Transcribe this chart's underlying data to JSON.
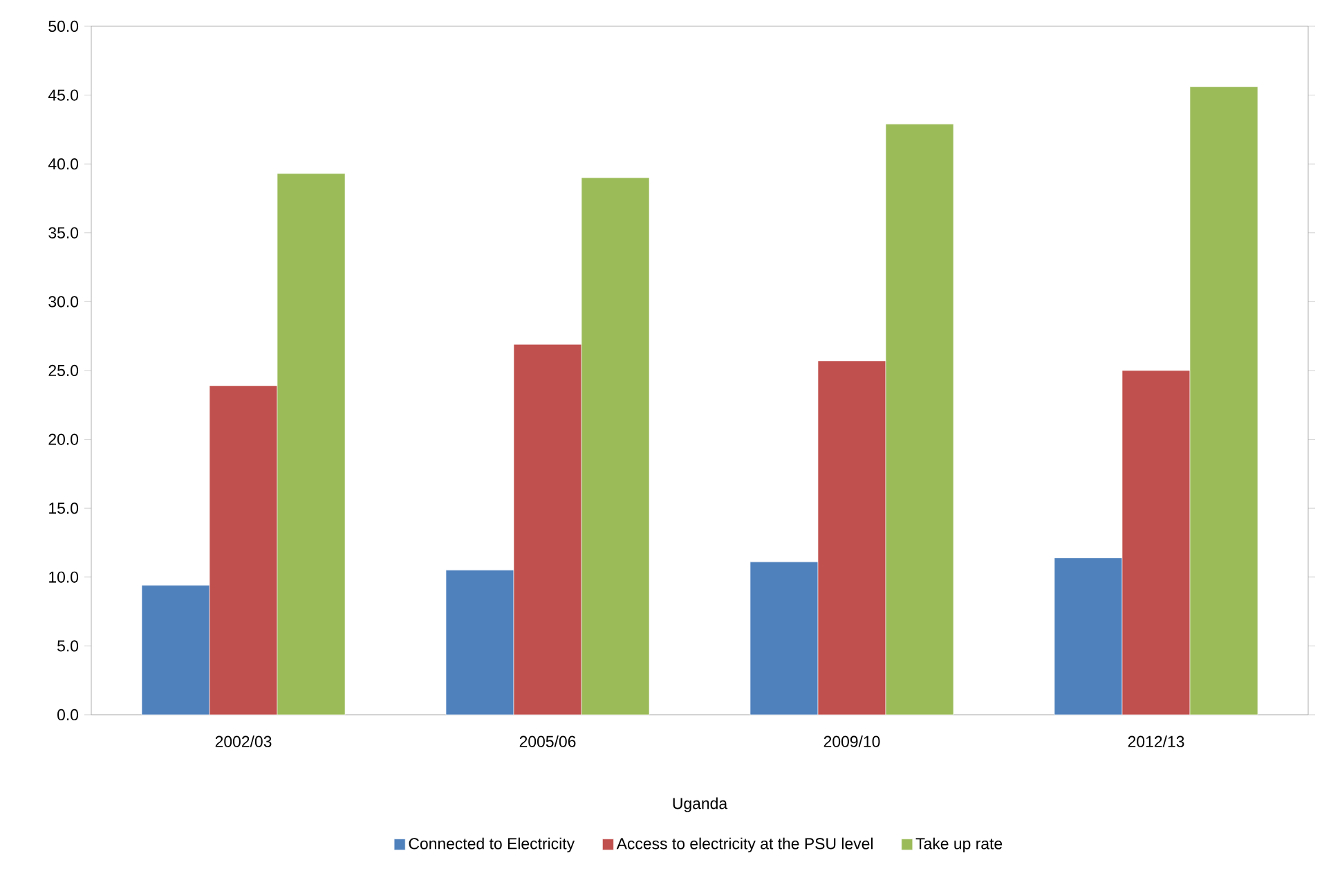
{
  "chart_data": {
    "type": "bar",
    "xlabel": "Uganda",
    "categories": [
      "2002/03",
      "2005/06",
      "2009/10",
      "2012/13"
    ],
    "series": [
      {
        "name": "Connected to Electricity",
        "color": "#4f81bd",
        "values": [
          9.4,
          10.5,
          11.1,
          11.4
        ]
      },
      {
        "name": "Access to electricity at the PSU level",
        "color": "#c0504d",
        "values": [
          23.9,
          26.9,
          25.7,
          25.0
        ]
      },
      {
        "name": "Take up rate",
        "color": "#9bbb59",
        "values": [
          39.3,
          39.0,
          42.9,
          45.6
        ]
      }
    ],
    "ylim": [
      0,
      50
    ],
    "yticks": [
      {
        "value": 0,
        "label": "0.0"
      },
      {
        "value": 5,
        "label": "5.0"
      },
      {
        "value": 10,
        "label": "10.0"
      },
      {
        "value": 15,
        "label": "15.0"
      },
      {
        "value": 20,
        "label": "20.0"
      },
      {
        "value": 25,
        "label": "25.0"
      },
      {
        "value": 30,
        "label": "30.0"
      },
      {
        "value": 35,
        "label": "35.0"
      },
      {
        "value": 40,
        "label": "40.0"
      },
      {
        "value": 45,
        "label": "45.0"
      },
      {
        "value": 50,
        "label": "50.0"
      }
    ],
    "grid": false,
    "legend": "bottom"
  }
}
